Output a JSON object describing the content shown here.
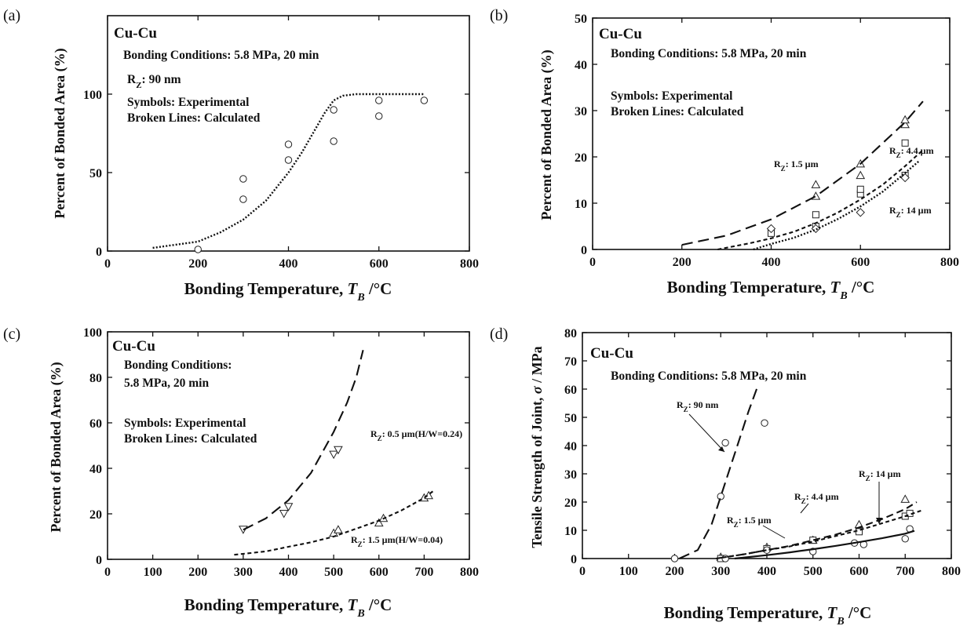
{
  "chart_data": [
    {
      "panel": "(a)",
      "type": "scatter",
      "title": "Cu-Cu",
      "annotations": [
        "Bonding Conditions: 5.8 MPa, 20 min",
        "R_Z: 90 nm",
        "Symbols: Experimental",
        "Broken Lines: Calculated"
      ],
      "xlabel": "Bonding Temperature, T_B /°C",
      "ylabel": "Percent of Bonded Area (%)",
      "xlim": [
        0,
        800
      ],
      "ylim": [
        0,
        150
      ],
      "xticks": [
        0,
        200,
        400,
        600,
        800
      ],
      "yticks": [
        0,
        50,
        100
      ],
      "series": [
        {
          "name": "",
          "kind": "scatter",
          "marker": "circle",
          "x": [
            200,
            300,
            300,
            400,
            400,
            500,
            500,
            600,
            600,
            700
          ],
          "y": [
            1,
            33,
            46,
            58,
            68,
            70,
            90,
            86,
            96,
            96
          ]
        },
        {
          "name": "",
          "kind": "line",
          "dash": "dotted",
          "x": [
            100,
            200,
            250,
            300,
            350,
            400,
            430,
            460,
            480,
            500,
            520,
            550,
            600,
            650,
            700
          ],
          "y": [
            2,
            6,
            12,
            20,
            32,
            50,
            63,
            78,
            88,
            96,
            99,
            100,
            100,
            100,
            100
          ]
        }
      ]
    },
    {
      "panel": "(b)",
      "type": "scatter",
      "title": "Cu-Cu",
      "annotations": [
        "Bonding Conditions: 5.8 MPa, 20 min",
        "Symbols: Experimental",
        "Broken Lines: Calculated"
      ],
      "xlabel": "Bonding Temperature, T_B /°C",
      "ylabel": "Percent of Bonded Area (%)",
      "xlim": [
        0,
        800
      ],
      "ylim": [
        0,
        50
      ],
      "xticks": [
        0,
        200,
        400,
        600,
        800
      ],
      "yticks": [
        0,
        10,
        20,
        30,
        40,
        50
      ],
      "series": [
        {
          "name": "R_Z: 1.5 µm",
          "kind": "scatter",
          "marker": "triangle",
          "x": [
            500,
            500,
            600,
            600,
            700,
            700
          ],
          "y": [
            11.5,
            14,
            16,
            18.5,
            27,
            28
          ]
        },
        {
          "name": "R_Z: 4.4 µm",
          "kind": "scatter",
          "marker": "square",
          "x": [
            400,
            500,
            500,
            600,
            600,
            700,
            700
          ],
          "y": [
            3.5,
            5,
            7.5,
            12,
            13,
            16,
            23
          ]
        },
        {
          "name": "R_Z: 14 µm",
          "kind": "scatter",
          "marker": "diamond",
          "x": [
            400,
            500,
            600,
            700
          ],
          "y": [
            4.5,
            4.5,
            8,
            15.5
          ]
        },
        {
          "name": "R_Z: 1.5 µm",
          "kind": "line",
          "dash": "long",
          "x": [
            200,
            300,
            400,
            500,
            600,
            700,
            740
          ],
          "y": [
            1,
            3,
            6.5,
            11.5,
            18.5,
            27.5,
            32
          ]
        },
        {
          "name": "R_Z: 4.4 µm",
          "kind": "line",
          "dash": "short",
          "x": [
            280,
            350,
            400,
            450,
            500,
            550,
            600,
            650,
            700,
            740
          ],
          "y": [
            0,
            1.3,
            2.4,
            3.8,
            5.7,
            8,
            10.8,
            14,
            18,
            21.5
          ]
        },
        {
          "name": "R_Z: 14 µm",
          "kind": "line",
          "dash": "dotted",
          "x": [
            360,
            400,
            450,
            500,
            550,
            600,
            650,
            700,
            730
          ],
          "y": [
            0,
            1.2,
            2.5,
            4.3,
            6.6,
            9.3,
            12.5,
            16.5,
            19
          ]
        }
      ]
    },
    {
      "panel": "(c)",
      "type": "scatter",
      "title": "Cu-Cu",
      "annotations": [
        "Bonding Conditions:",
        "5.8 MPa, 20 min",
        "Symbols: Experimental",
        "Broken Lines: Calculated"
      ],
      "xlabel": "Bonding Temperature, T_B /°C",
      "ylabel": "Percent of Bonded Area (%)",
      "xlim": [
        0,
        800
      ],
      "ylim": [
        0,
        100
      ],
      "xticks": [
        0,
        100,
        200,
        300,
        400,
        500,
        600,
        700,
        800
      ],
      "yticks": [
        0,
        20,
        40,
        60,
        80,
        100
      ],
      "series": [
        {
          "name": "R_Z: 0.5 µm(H/W=0.24)",
          "kind": "scatter",
          "marker": "triangle-down",
          "x": [
            300,
            400,
            390,
            500,
            510
          ],
          "y": [
            13,
            23,
            20,
            46,
            48
          ]
        },
        {
          "name": "R_Z: 1.5 µm(H/W=0.04)",
          "kind": "scatter",
          "marker": "triangle",
          "x": [
            500,
            510,
            600,
            610,
            700,
            710
          ],
          "y": [
            11.5,
            13,
            16,
            18,
            27,
            28
          ]
        },
        {
          "name": "R_Z: 0.5 µm(H/W=0.24)",
          "kind": "line",
          "dash": "long",
          "x": [
            300,
            350,
            400,
            450,
            500,
            530,
            550,
            565
          ],
          "y": [
            13,
            18,
            26,
            38,
            56,
            69,
            80,
            92
          ]
        },
        {
          "name": "R_Z: 1.5 µm(H/W=0.04)",
          "kind": "line",
          "dash": "short",
          "x": [
            280,
            350,
            400,
            450,
            500,
            550,
            600,
            650,
            700,
            720
          ],
          "y": [
            2,
            3.5,
            5.5,
            7.5,
            10,
            13.5,
            17,
            21.5,
            27,
            30
          ]
        }
      ]
    },
    {
      "panel": "(d)",
      "type": "scatter",
      "title": "Cu-Cu",
      "annotations": [
        "Bonding Conditions: 5.8 MPa, 20 min"
      ],
      "xlabel": "Bonding Temperature, T_B /°C",
      "ylabel": "Tensile Strength of Joint, σ / MPa",
      "xlim": [
        0,
        800
      ],
      "ylim": [
        0,
        80
      ],
      "xticks": [
        0,
        100,
        200,
        300,
        400,
        500,
        600,
        700,
        800
      ],
      "yticks": [
        0,
        10,
        20,
        30,
        40,
        50,
        60,
        70,
        80
      ],
      "series": [
        {
          "name": "R_Z: 90 nm",
          "kind": "scatter",
          "marker": "circle",
          "x": [
            200,
            300,
            310,
            395
          ],
          "y": [
            0,
            22,
            41,
            48
          ]
        },
        {
          "name": "R_Z: 1.5 µm",
          "kind": "scatter",
          "marker": "triangle",
          "x": [
            300,
            400,
            500,
            600,
            700
          ],
          "y": [
            0.5,
            4,
            6.5,
            12,
            21
          ]
        },
        {
          "name": "R_Z: 4.4 µm",
          "kind": "scatter",
          "marker": "square",
          "x": [
            300,
            400,
            500,
            600,
            700,
            710
          ],
          "y": [
            0,
            3.5,
            6.5,
            9.5,
            15,
            16
          ]
        },
        {
          "name": "R_Z: 14 µm",
          "kind": "scatter",
          "marker": "circle",
          "x": [
            310,
            400,
            500,
            590,
            610,
            700,
            710
          ],
          "y": [
            0,
            3,
            2.5,
            5.5,
            5,
            7,
            10.5
          ]
        },
        {
          "name": "R_Z: 90 nm",
          "kind": "line",
          "dash": "long",
          "x": [
            210,
            250,
            280,
            300,
            320,
            340,
            360,
            380
          ],
          "y": [
            0,
            3,
            12,
            22,
            32,
            42,
            52,
            61
          ]
        },
        {
          "name": "R_Z: 1.5 µm",
          "kind": "line",
          "dash": "medium",
          "x": [
            290,
            350,
            400,
            450,
            500,
            550,
            600,
            650,
            700,
            725
          ],
          "y": [
            0,
            1.5,
            3,
            4.5,
            6.5,
            8.5,
            11,
            14,
            17.5,
            20
          ]
        },
        {
          "name": "R_Z: 4.4 µm",
          "kind": "line",
          "dash": "short",
          "x": [
            290,
            350,
            400,
            450,
            500,
            550,
            600,
            650,
            700,
            735
          ],
          "y": [
            0,
            1.5,
            3,
            4.3,
            6,
            8,
            10,
            12.5,
            15,
            17
          ]
        },
        {
          "name": "R_Z: 14 µm",
          "kind": "line",
          "dash": "solid",
          "x": [
            330,
            400,
            450,
            500,
            550,
            600,
            650,
            700,
            720
          ],
          "y": [
            0,
            1.2,
            2.2,
            3.3,
            4.5,
            5.8,
            7.2,
            8.8,
            9.8
          ]
        }
      ]
    }
  ]
}
